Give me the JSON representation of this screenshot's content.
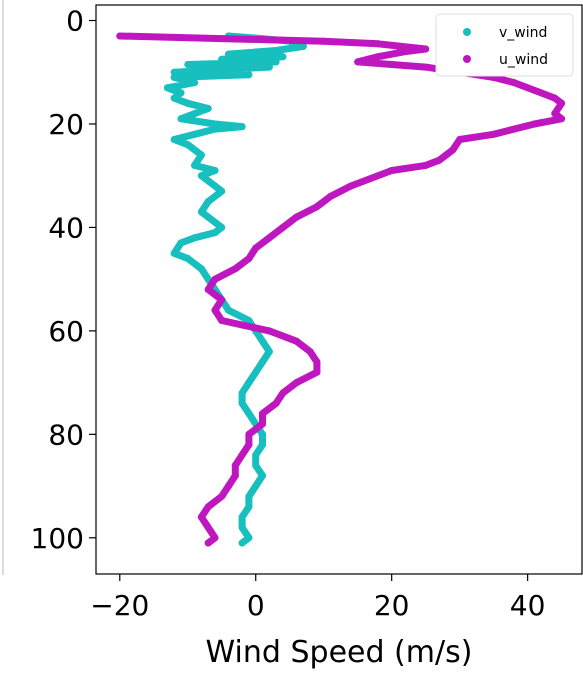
{
  "chart_data": {
    "type": "scatter",
    "xlabel": "Wind Speed (m/s)",
    "ylabel": "",
    "xlim": [
      -23.5,
      48
    ],
    "ylim": [
      -3,
      107
    ],
    "y_inverted": true,
    "x_ticks": [
      -20,
      0,
      20,
      40
    ],
    "x_tick_labels": [
      "−20",
      "0",
      "20",
      "40"
    ],
    "y_ticks": [
      0,
      20,
      40,
      60,
      80,
      100
    ],
    "y_tick_labels": [
      "0",
      "20",
      "40",
      "60",
      "80",
      "100"
    ],
    "grid": false,
    "legend_position": "top-right",
    "series": [
      {
        "name": "v_wind",
        "color": "#17bfbf",
        "points": [
          [
            -4,
            3
          ],
          [
            1,
            3.5
          ],
          [
            5,
            4
          ],
          [
            7,
            5
          ],
          [
            3,
            5.8
          ],
          [
            -4,
            6.5
          ],
          [
            4,
            7
          ],
          [
            -5,
            7.5
          ],
          [
            3,
            8
          ],
          [
            -10,
            8.5
          ],
          [
            2,
            9
          ],
          [
            -12,
            10
          ],
          [
            -1,
            10.5
          ],
          [
            -12,
            11
          ],
          [
            -9,
            12
          ],
          [
            -13,
            13
          ],
          [
            -11,
            14
          ],
          [
            -12,
            15
          ],
          [
            -10,
            16
          ],
          [
            -7,
            17
          ],
          [
            -9,
            18
          ],
          [
            -11,
            19
          ],
          [
            -6,
            20
          ],
          [
            -2,
            20.5
          ],
          [
            -6,
            21
          ],
          [
            -9,
            22
          ],
          [
            -12,
            23
          ],
          [
            -10,
            24
          ],
          [
            -8,
            26
          ],
          [
            -9,
            28
          ],
          [
            -6,
            29
          ],
          [
            -8,
            30
          ],
          [
            -6,
            32
          ],
          [
            -5,
            33
          ],
          [
            -7,
            35
          ],
          [
            -8,
            37
          ],
          [
            -7,
            38
          ],
          [
            -5,
            40
          ],
          [
            -6,
            41
          ],
          [
            -9,
            42
          ],
          [
            -11,
            43
          ],
          [
            -12,
            45
          ],
          [
            -10,
            46
          ],
          [
            -8,
            48
          ],
          [
            -7,
            50
          ],
          [
            -6,
            52
          ],
          [
            -5,
            54
          ],
          [
            -4,
            56
          ],
          [
            -1,
            58
          ],
          [
            0,
            60
          ],
          [
            1,
            62
          ],
          [
            2,
            64
          ],
          [
            1,
            66
          ],
          [
            0,
            68
          ],
          [
            -1,
            70
          ],
          [
            -2,
            72
          ],
          [
            -2,
            74
          ],
          [
            -1,
            76
          ],
          [
            0,
            78
          ],
          [
            1,
            80
          ],
          [
            1,
            82
          ],
          [
            0,
            84
          ],
          [
            0,
            86
          ],
          [
            1,
            88
          ],
          [
            0,
            90
          ],
          [
            -1,
            92
          ],
          [
            -1,
            94
          ],
          [
            -2,
            96
          ],
          [
            -2,
            98
          ],
          [
            -1,
            100
          ],
          [
            -2,
            101
          ]
        ]
      },
      {
        "name": "u_wind",
        "color": "#bf17bf",
        "points": [
          [
            -20,
            3
          ],
          [
            -5,
            3.5
          ],
          [
            10,
            4
          ],
          [
            18,
            4.5
          ],
          [
            25,
            5.5
          ],
          [
            22,
            6
          ],
          [
            18,
            7
          ],
          [
            15,
            8
          ],
          [
            20,
            8.5
          ],
          [
            25,
            9
          ],
          [
            30,
            10
          ],
          [
            35,
            11
          ],
          [
            38,
            12
          ],
          [
            42,
            14
          ],
          [
            44,
            15
          ],
          [
            45,
            16
          ],
          [
            44,
            18
          ],
          [
            45,
            19
          ],
          [
            41,
            20
          ],
          [
            35,
            22
          ],
          [
            30,
            23
          ],
          [
            29,
            25
          ],
          [
            27,
            27
          ],
          [
            25,
            28
          ],
          [
            20,
            29
          ],
          [
            14,
            32
          ],
          [
            11,
            34
          ],
          [
            9,
            36
          ],
          [
            6,
            38
          ],
          [
            4,
            40
          ],
          [
            2,
            42
          ],
          [
            0,
            44
          ],
          [
            -1,
            46
          ],
          [
            -3,
            48
          ],
          [
            -6,
            50
          ],
          [
            -7,
            52
          ],
          [
            -5,
            54
          ],
          [
            -6,
            56
          ],
          [
            -5,
            58
          ],
          [
            2,
            60
          ],
          [
            6,
            62
          ],
          [
            8,
            64
          ],
          [
            9,
            66
          ],
          [
            9,
            68
          ],
          [
            6,
            70
          ],
          [
            4,
            72
          ],
          [
            3,
            74
          ],
          [
            1,
            76
          ],
          [
            1,
            78
          ],
          [
            -1,
            80
          ],
          [
            -1,
            82
          ],
          [
            -2,
            84
          ],
          [
            -3,
            86
          ],
          [
            -3,
            88
          ],
          [
            -4,
            90
          ],
          [
            -5,
            92
          ],
          [
            -7,
            94
          ],
          [
            -8,
            96
          ],
          [
            -7,
            98
          ],
          [
            -6,
            100
          ],
          [
            -7,
            101
          ]
        ]
      }
    ]
  }
}
